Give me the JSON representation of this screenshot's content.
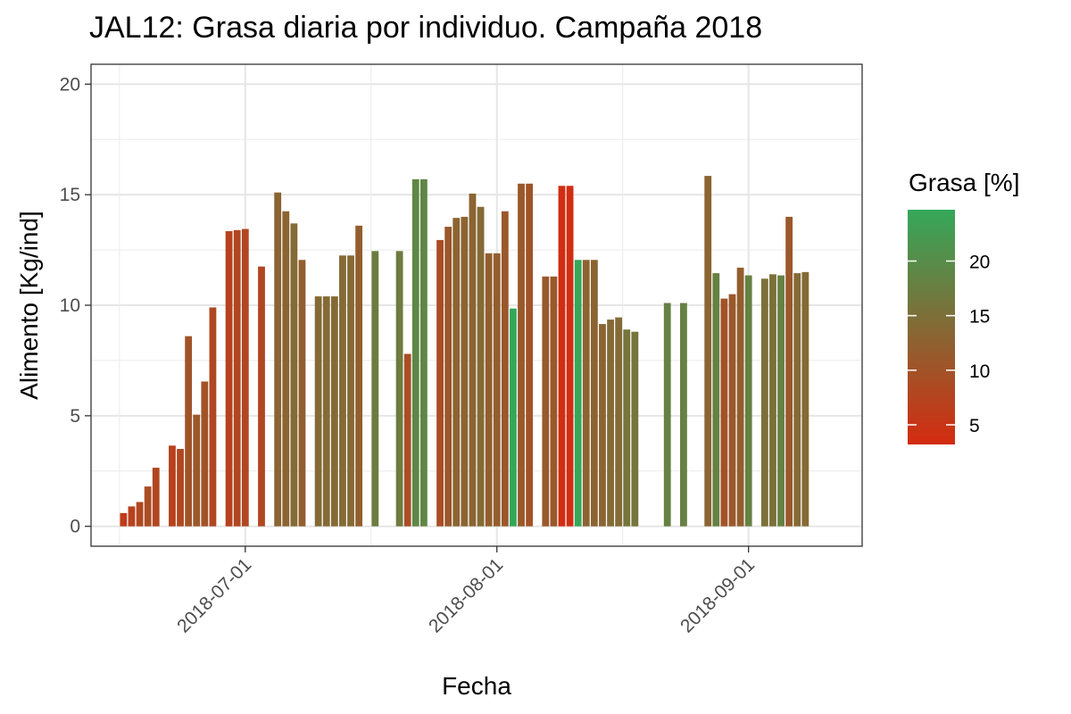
{
  "chart_data": {
    "type": "bar",
    "title": "JAL12: Grasa diaria por individuo. Campaña 2018",
    "xlabel": "Fecha",
    "ylabel": "Alimento [Kg/ind]",
    "ylim": [
      -0.9,
      20.9
    ],
    "yticks": [
      0,
      5,
      10,
      15,
      20
    ],
    "xticks": [
      {
        "date": "2018-07-01",
        "label": "2018-07-01"
      },
      {
        "date": "2018-08-01",
        "label": "2018-08-01"
      },
      {
        "date": "2018-09-01",
        "label": "2018-09-01"
      }
    ],
    "xlim": [
      "2018-06-12",
      "2018-09-15"
    ],
    "grid": true,
    "legend": {
      "title": "Grasa [%]",
      "position": "right",
      "range": [
        3.2,
        24.7
      ],
      "ticks": [
        5,
        10,
        15,
        20
      ],
      "low_color": "#d42b10",
      "high_color": "#34a85a"
    },
    "series": [
      {
        "date": [
          "2018-06-16",
          "2018-06-17",
          "2018-06-18",
          "2018-06-19",
          "2018-06-20",
          "2018-06-22",
          "2018-06-23",
          "2018-06-24",
          "2018-06-25",
          "2018-06-26",
          "2018-06-27",
          "2018-06-29",
          "2018-06-30",
          "2018-07-01",
          "2018-07-03",
          "2018-07-05",
          "2018-07-06",
          "2018-07-07",
          "2018-07-08",
          "2018-07-10",
          "2018-07-11",
          "2018-07-12",
          "2018-07-13",
          "2018-07-14",
          "2018-07-15",
          "2018-07-17",
          "2018-07-20",
          "2018-07-21",
          "2018-07-22",
          "2018-07-23",
          "2018-07-25",
          "2018-07-26",
          "2018-07-27",
          "2018-07-28",
          "2018-07-29",
          "2018-07-30",
          "2018-07-31",
          "2018-08-01",
          "2018-08-02",
          "2018-08-03",
          "2018-08-04",
          "2018-08-05",
          "2018-08-07",
          "2018-08-08",
          "2018-08-09",
          "2018-08-10",
          "2018-08-11",
          "2018-08-12",
          "2018-08-13",
          "2018-08-14",
          "2018-08-15",
          "2018-08-16",
          "2018-08-17",
          "2018-08-18",
          "2018-08-22",
          "2018-08-24",
          "2018-08-27",
          "2018-08-28",
          "2018-08-29",
          "2018-08-30",
          "2018-08-31",
          "2018-09-01",
          "2018-09-03",
          "2018-09-04",
          "2018-09-05",
          "2018-09-06",
          "2018-09-07",
          "2018-09-08"
        ],
        "values": [
          0.6,
          0.9,
          1.1,
          1.8,
          2.65,
          3.65,
          3.5,
          8.6,
          5.05,
          6.55,
          9.9,
          13.35,
          13.4,
          13.45,
          11.75,
          15.1,
          14.25,
          13.7,
          12.05,
          10.4,
          10.4,
          10.4,
          12.25,
          12.25,
          13.6,
          12.45,
          12.45,
          7.8,
          15.7,
          15.7,
          12.95,
          13.55,
          13.95,
          14.0,
          15.05,
          14.45,
          12.35,
          12.35,
          14.25,
          9.85,
          15.5,
          15.5,
          11.3,
          11.3,
          15.4,
          15.4,
          12.05,
          12.05,
          12.05,
          9.15,
          9.35,
          9.45,
          8.9,
          8.8,
          10.1,
          10.1,
          15.85,
          11.45,
          10.3,
          10.5,
          11.7,
          11.35,
          11.2,
          11.4,
          11.35,
          14.0,
          11.45,
          11.5
        ],
        "grasa": [
          6,
          7,
          8,
          9,
          8,
          7,
          8,
          10,
          11,
          10,
          8,
          7,
          8,
          8,
          8,
          13,
          13,
          14,
          12,
          14,
          14,
          14,
          14,
          14,
          12,
          17,
          17,
          9,
          19,
          19,
          9,
          11,
          13,
          13,
          13,
          14,
          12,
          12,
          11,
          24.7,
          11,
          10,
          11,
          11,
          3.5,
          3.5,
          24.5,
          13,
          13,
          13,
          14,
          14,
          16,
          16,
          18,
          18,
          13,
          18,
          10,
          11,
          12,
          18,
          15,
          15,
          18,
          11,
          14,
          14
        ]
      }
    ]
  }
}
